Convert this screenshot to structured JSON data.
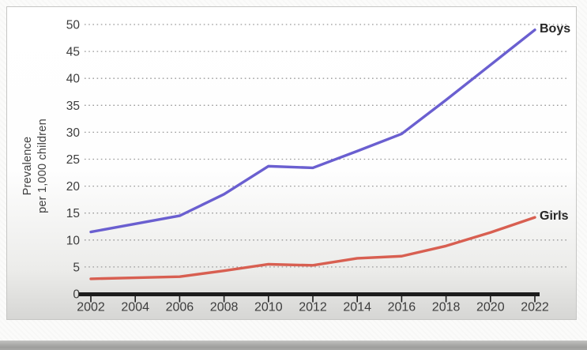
{
  "chart_data": {
    "type": "line",
    "title": "",
    "xlabel": "",
    "ylabel": "Prevalence per 1,000 children",
    "ylabel_lines": [
      "Prevalence",
      "per 1,000 children"
    ],
    "categories": [
      "2002",
      "2004",
      "2006",
      "2008",
      "2010",
      "2012",
      "2014",
      "2016",
      "2018",
      "2020",
      "2022"
    ],
    "y_ticks": [
      0,
      5,
      10,
      15,
      20,
      25,
      30,
      35,
      40,
      45,
      50
    ],
    "ylim": [
      0,
      50
    ],
    "grid": "horizontal-dotted",
    "legend_position": "line-end-labels",
    "series": [
      {
        "name": "Boys",
        "color": "#6a5fd0",
        "values": [
          11.5,
          13.0,
          14.5,
          18.5,
          23.7,
          23.4,
          26.5,
          29.7,
          36.0,
          42.5,
          49.0
        ]
      },
      {
        "name": "Girls",
        "color": "#d85f51",
        "values": [
          2.8,
          3.0,
          3.2,
          4.3,
          5.5,
          5.3,
          6.6,
          7.0,
          8.9,
          11.4,
          14.2
        ]
      }
    ],
    "style": {
      "gridline_color": "#999999",
      "axis_color": "#1c1c1c",
      "tick_label_color": "#3d3d3d",
      "line_width": 3.4
    }
  }
}
